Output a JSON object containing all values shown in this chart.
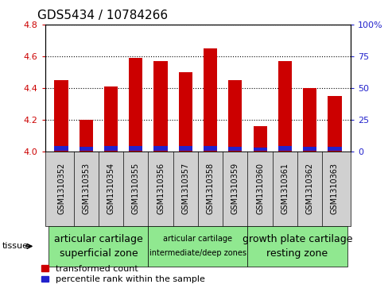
{
  "title": "GDS5434 / 10784266",
  "samples": [
    "GSM1310352",
    "GSM1310353",
    "GSM1310354",
    "GSM1310355",
    "GSM1310356",
    "GSM1310357",
    "GSM1310358",
    "GSM1310359",
    "GSM1310360",
    "GSM1310361",
    "GSM1310362",
    "GSM1310363"
  ],
  "red_values": [
    4.45,
    4.2,
    4.41,
    4.59,
    4.57,
    4.5,
    4.65,
    4.45,
    4.16,
    4.57,
    4.4,
    4.35
  ],
  "blue_values": [
    0.03,
    0.025,
    0.028,
    0.028,
    0.028,
    0.028,
    0.03,
    0.025,
    0.022,
    0.028,
    0.026,
    0.026
  ],
  "blue_bottoms": [
    4.003,
    4.003,
    4.003,
    4.003,
    4.003,
    4.003,
    4.003,
    4.003,
    4.003,
    4.003,
    4.003,
    4.003
  ],
  "ymin": 4.0,
  "ymax": 4.8,
  "y_ticks_left": [
    4.0,
    4.2,
    4.4,
    4.6,
    4.8
  ],
  "y_ticks_right": [
    0,
    25,
    50,
    75,
    100
  ],
  "y_ticks_right_labels": [
    "0",
    "25",
    "50",
    "75",
    "100%"
  ],
  "red_color": "#cc0000",
  "blue_color": "#2222cc",
  "bar_width": 0.55,
  "xlim_left": -0.65,
  "xlim_right": 11.65,
  "groups": [
    {
      "label_line1": "articular cartilage",
      "label_line2": "superficial zone",
      "start": 0,
      "end": 3,
      "color": "#90e890",
      "fontsize_l1": 9,
      "fontsize_l2": 9
    },
    {
      "label_line1": "articular cartilage",
      "label_line2": "intermediate/deep zones",
      "start": 4,
      "end": 7,
      "color": "#90e890",
      "fontsize_l1": 7,
      "fontsize_l2": 7
    },
    {
      "label_line1": "growth plate cartilage",
      "label_line2": "resting zone",
      "start": 8,
      "end": 11,
      "color": "#90e890",
      "fontsize_l1": 9,
      "fontsize_l2": 9
    }
  ],
  "tissue_label": "tissue",
  "legend_red": "transformed count",
  "legend_blue": "percentile rank within the sample",
  "tick_bg_color": "#d0d0d0",
  "plot_bg_color": "#ffffff",
  "title_fontsize": 11,
  "ytick_fontsize": 8,
  "sample_fontsize": 7,
  "legend_fontsize": 8,
  "tissue_fontsize": 8
}
